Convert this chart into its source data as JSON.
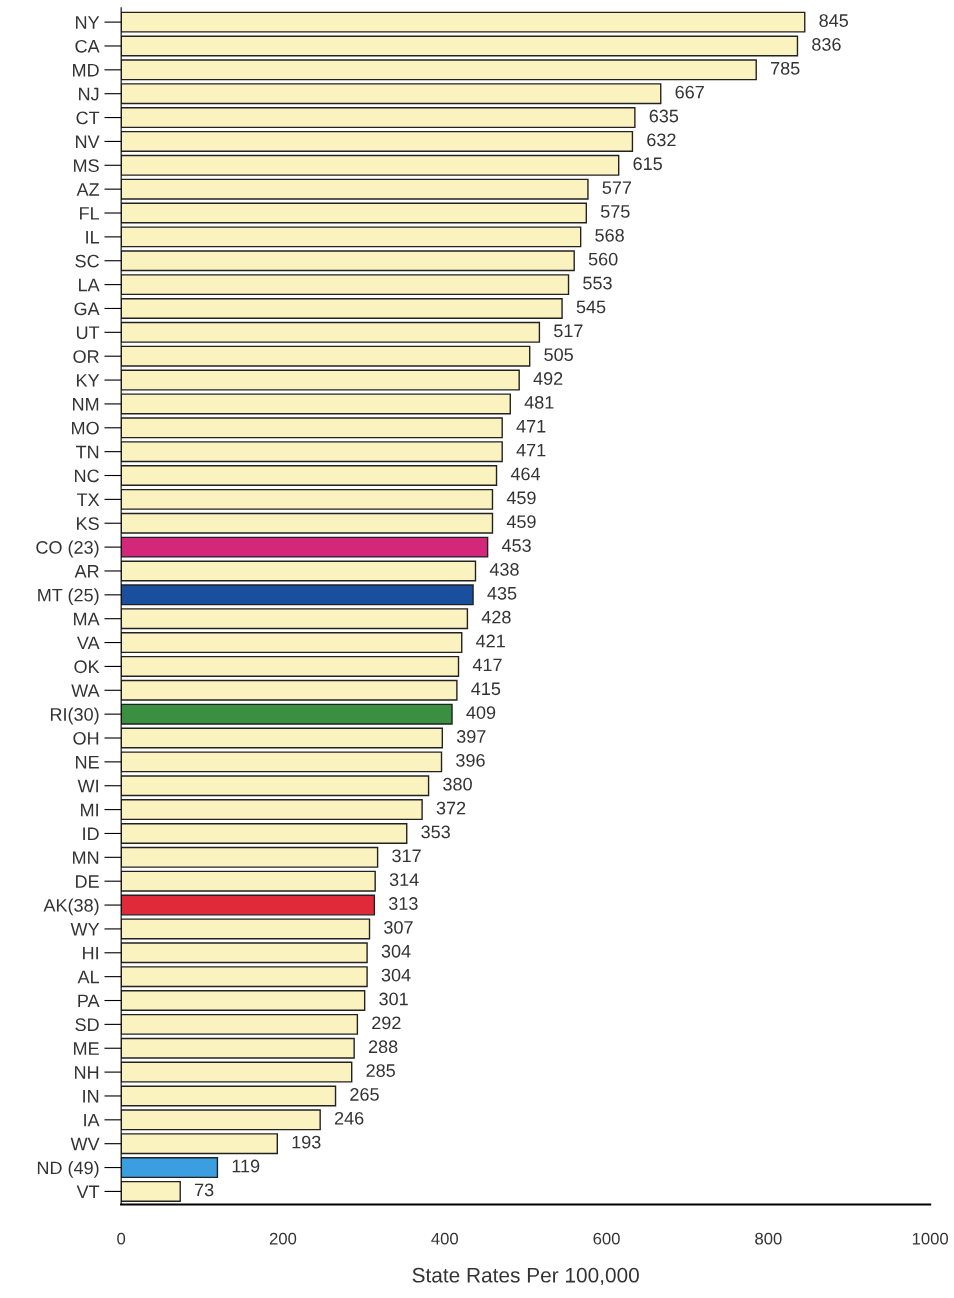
{
  "chart_data": {
    "type": "bar",
    "orientation": "horizontal",
    "xlabel": "State Rates Per 100,000",
    "categories": [
      "NY",
      "CA",
      "MD",
      "NJ",
      "CT",
      "NV",
      "MS",
      "AZ",
      "FL",
      "IL",
      "SC",
      "LA",
      "GA",
      "UT",
      "OR",
      "KY",
      "NM",
      "MO",
      "TN",
      "NC",
      "TX",
      "KS",
      "CO (23)",
      "AR",
      "MT (25)",
      "MA",
      "VA",
      "OK",
      "WA",
      "RI(30)",
      "OH",
      "NE",
      "WI",
      "MI",
      "ID",
      "MN",
      "DE",
      "AK(38)",
      "WY",
      "HI",
      "AL",
      "PA",
      "SD",
      "ME",
      "NH",
      "IN",
      "IA",
      "WV",
      "ND (49)",
      "VT"
    ],
    "values": [
      845,
      836,
      785,
      667,
      635,
      632,
      615,
      577,
      575,
      568,
      560,
      553,
      545,
      517,
      505,
      492,
      481,
      471,
      471,
      464,
      459,
      459,
      453,
      438,
      435,
      428,
      421,
      417,
      415,
      409,
      397,
      396,
      380,
      372,
      353,
      317,
      314,
      313,
      307,
      304,
      304,
      301,
      292,
      288,
      285,
      265,
      246,
      193,
      119,
      73
    ],
    "colors": [
      "#faf3c0",
      "#faf3c0",
      "#faf3c0",
      "#faf3c0",
      "#faf3c0",
      "#faf3c0",
      "#faf3c0",
      "#faf3c0",
      "#faf3c0",
      "#faf3c0",
      "#faf3c0",
      "#faf3c0",
      "#faf3c0",
      "#faf3c0",
      "#faf3c0",
      "#faf3c0",
      "#faf3c0",
      "#faf3c0",
      "#faf3c0",
      "#faf3c0",
      "#faf3c0",
      "#faf3c0",
      "#d3287a",
      "#faf3c0",
      "#1a4f9e",
      "#faf3c0",
      "#faf3c0",
      "#faf3c0",
      "#faf3c0",
      "#3a9040",
      "#faf3c0",
      "#faf3c0",
      "#faf3c0",
      "#faf3c0",
      "#faf3c0",
      "#faf3c0",
      "#faf3c0",
      "#e02a3a",
      "#faf3c0",
      "#faf3c0",
      "#faf3c0",
      "#faf3c0",
      "#faf3c0",
      "#faf3c0",
      "#faf3c0",
      "#faf3c0",
      "#faf3c0",
      "#faf3c0",
      "#3a9ee0",
      "#faf3c0"
    ],
    "xlim": [
      0,
      1000
    ],
    "xticks": [
      0,
      200,
      400,
      600,
      800,
      1000
    ],
    "data_labels": true,
    "grid": false,
    "legend": false
  }
}
